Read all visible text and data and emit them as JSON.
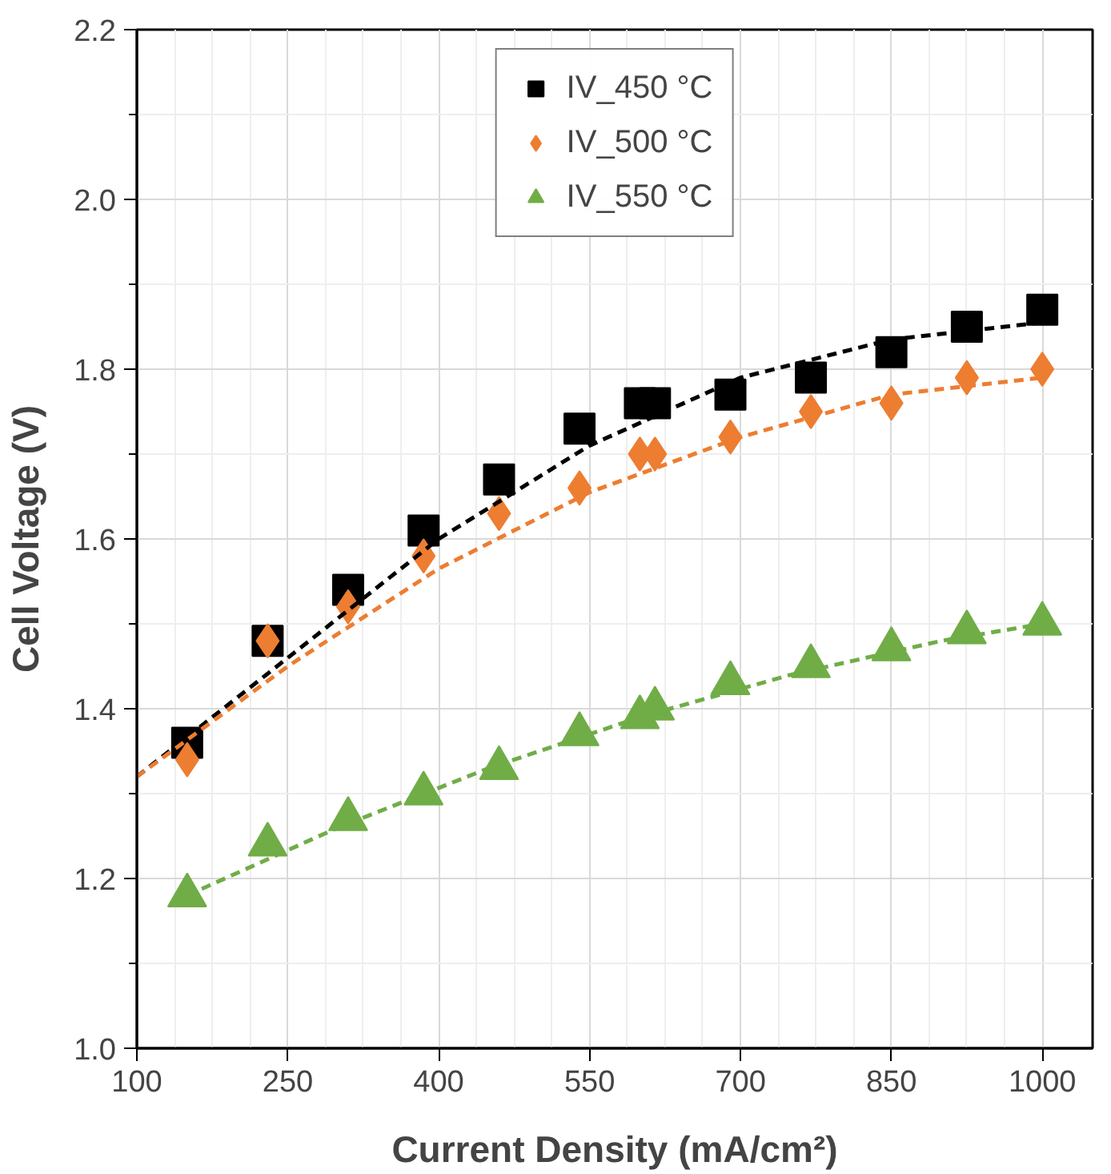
{
  "chart_data": {
    "type": "scatter",
    "xlabel": "Current Density (mA/cm²)",
    "ylabel": "Cell Voltage (V)",
    "xlim": [
      100,
      1050
    ],
    "xticks": [
      100,
      250,
      400,
      550,
      700,
      850,
      1000
    ],
    "ylim": [
      1.0,
      2.2
    ],
    "yticks": [
      {
        "value": 1.0,
        "label": "1.0"
      },
      {
        "value": 1.2,
        "label": "1.2"
      },
      {
        "value": 1.4,
        "label": "1.4"
      },
      {
        "value": 1.6,
        "label": "1.6"
      },
      {
        "value": 1.8,
        "label": "1.8"
      },
      {
        "value": 2.0,
        "label": "2.0"
      },
      {
        "value": 2.2,
        "label": "2.2"
      }
    ],
    "grid": true,
    "legend": "top",
    "x": [
      150,
      230,
      310,
      385,
      460,
      540,
      600,
      615,
      690,
      770,
      850,
      925,
      1000
    ],
    "series": [
      {
        "name": "IV_450 °C",
        "color": "#000000",
        "marker": "square",
        "values": [
          1.36,
          1.48,
          1.54,
          1.61,
          1.67,
          1.73,
          1.76,
          1.76,
          1.77,
          1.79,
          1.82,
          1.85,
          1.87
        ]
      },
      {
        "name": "IV_500 °C",
        "color": "#ed7d31",
        "marker": "diamond",
        "values": [
          1.34,
          1.48,
          1.52,
          1.58,
          1.63,
          1.66,
          1.7,
          1.7,
          1.72,
          1.75,
          1.76,
          1.79,
          1.8
        ]
      },
      {
        "name": "IV_550 °C",
        "color": "#70ad47",
        "marker": "triangle",
        "values": [
          1.18,
          1.24,
          1.27,
          1.3,
          1.33,
          1.37,
          1.39,
          1.4,
          1.43,
          1.45,
          1.47,
          1.49,
          1.5
        ]
      },
      {
        "type": "line",
        "color": "#000000",
        "line_style": "dashed",
        "x": [
          100,
          250,
          400,
          550,
          700,
          850,
          1000
        ],
        "values": [
          1.32,
          1.46,
          1.6,
          1.71,
          1.79,
          1.835,
          1.855
        ]
      },
      {
        "type": "line",
        "color": "#ed7d31",
        "line_style": "dashed",
        "x": [
          100,
          250,
          400,
          550,
          700,
          850,
          1000
        ],
        "values": [
          1.32,
          1.45,
          1.565,
          1.655,
          1.72,
          1.77,
          1.79
        ]
      },
      {
        "type": "line",
        "color": "#70ad47",
        "line_style": "dashed",
        "x": [
          150,
          300,
          450,
          600,
          750,
          900,
          1000
        ],
        "values": [
          1.18,
          1.26,
          1.33,
          1.39,
          1.44,
          1.48,
          1.5
        ]
      }
    ]
  }
}
